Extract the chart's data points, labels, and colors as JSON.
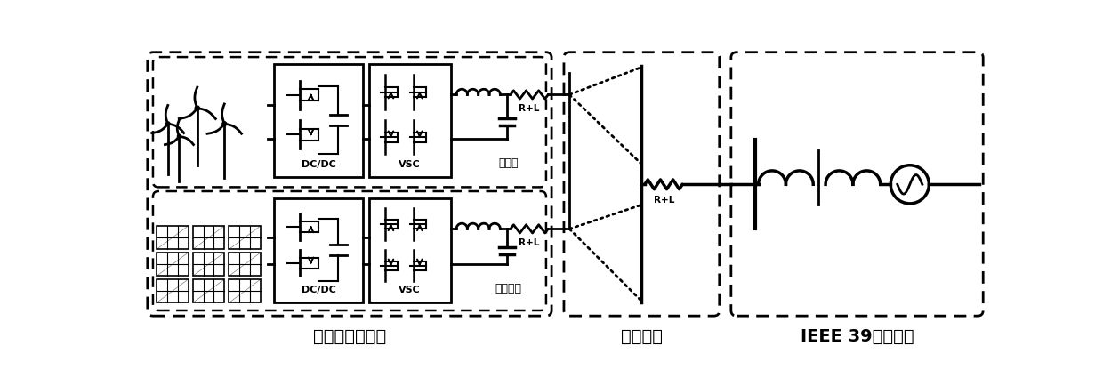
{
  "bg_color": "#ffffff",
  "lc": "#000000",
  "figsize": [
    12.4,
    4.25
  ],
  "dpi": 100,
  "labels": {
    "wind_farm": "风电场",
    "solar_farm": "光伏电站",
    "renewable": "可再生能源场站",
    "network": "网络结构",
    "ieee": "IEEE 39节点系统",
    "dcdc": "DC/DC",
    "vsc": "VSC",
    "rl": "R+L"
  }
}
